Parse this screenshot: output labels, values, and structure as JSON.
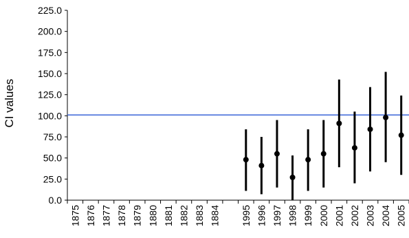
{
  "chart_data": {
    "type": "scatter",
    "title": "",
    "xlabel": "",
    "ylabel": "CI values",
    "ylim": [
      0,
      225
    ],
    "yticks": [
      "0.0",
      "25.0",
      "50.0",
      "75.0",
      "100.0",
      "125.0",
      "150.0",
      "175.0",
      "200.0",
      "225.0"
    ],
    "categories": [
      "1875",
      "1876",
      "1877",
      "1878",
      "1879",
      "1880",
      "1881",
      "1882",
      "1883",
      "1884",
      "",
      "1995",
      "1996",
      "1997",
      "1998",
      "1999",
      "2000",
      "2001",
      "2002",
      "2003",
      "2004",
      "2005"
    ],
    "series": [
      {
        "values": [
          null,
          null,
          null,
          null,
          null,
          null,
          null,
          null,
          null,
          null,
          null,
          48,
          41,
          55,
          27,
          48,
          55,
          91,
          62,
          84,
          98,
          77
        ],
        "lower": [
          null,
          null,
          null,
          null,
          null,
          null,
          null,
          null,
          null,
          null,
          null,
          11,
          7,
          15,
          0,
          11,
          15,
          39,
          20,
          34,
          45,
          30
        ],
        "upper": [
          null,
          null,
          null,
          null,
          null,
          null,
          null,
          null,
          null,
          null,
          null,
          84,
          75,
          95,
          53,
          84,
          95,
          143,
          105,
          134,
          152,
          124
        ],
        "color": "#000000"
      }
    ],
    "reference_line": {
      "y": 101,
      "color": "#3a64d8"
    },
    "grid": false,
    "legend": "none"
  }
}
